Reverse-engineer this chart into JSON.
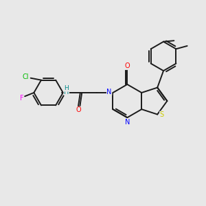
{
  "bg_color": "#e8e8e8",
  "bond_color": "#1a1a1a",
  "bond_width": 1.4,
  "atom_colors": {
    "C": "#1a1a1a",
    "N": "#0000ff",
    "O": "#ff0000",
    "S": "#cccc00",
    "Cl": "#00bb00",
    "F": "#ff00ff",
    "H": "#008888"
  },
  "font_size": 7.0
}
